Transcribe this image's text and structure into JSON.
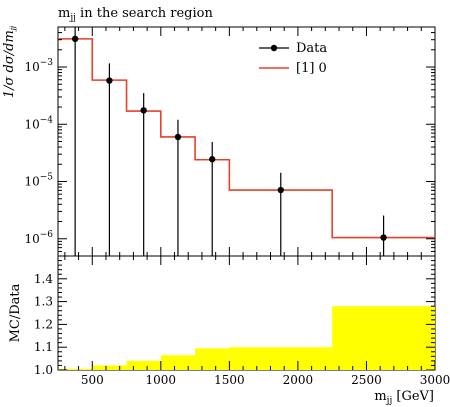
{
  "chart_data": [
    {
      "type": "line",
      "title": "m_jj in the search region",
      "ylabel": "1/σ dσ/dm_jj",
      "yscale": "log",
      "xlim": [
        250,
        3000
      ],
      "ylim": [
        5e-07,
        0.005
      ],
      "x_ticks": [
        500,
        1000,
        1500,
        2000,
        2500,
        3000
      ],
      "y_ticks": [
        {
          "value": 0.001,
          "mantissa": "10",
          "exp": "−3"
        },
        {
          "value": 0.0001,
          "mantissa": "10",
          "exp": "−4"
        },
        {
          "value": 1e-05,
          "mantissa": "10",
          "exp": "−5"
        },
        {
          "value": 1e-06,
          "mantissa": "10",
          "exp": "−6"
        }
      ],
      "legend": {
        "position": "top-right",
        "entries": [
          {
            "label": "Data",
            "style": "marker"
          },
          {
            "label": "[1] 0",
            "style": "line"
          }
        ]
      },
      "series": [
        {
          "name": "Data",
          "style": "points",
          "x": [
            375,
            625,
            875,
            1125,
            1375,
            1875,
            2625
          ],
          "y": [
            0.0031,
            0.00058,
            0.000175,
            6e-05,
            2.45e-05,
            7.1e-06,
            1.05e-06
          ],
          "yerr_low": [
            0.0031,
            0.00058,
            0.000175,
            6e-05,
            2.45e-05,
            7.1e-06,
            7.5e-07
          ],
          "yerr_high": [
            0.0031,
            0.00058,
            0.000175,
            6e-05,
            2.45e-05,
            7.1e-06,
            1.5e-06
          ]
        },
        {
          "name": "[1] 0",
          "style": "step",
          "color": "#e8412a",
          "bin_edges": [
            250,
            500,
            750,
            1000,
            1250,
            1500,
            2250,
            3000
          ],
          "values": [
            0.0031,
            0.00059,
            0.00017,
            6e-05,
            2.4e-05,
            7.1e-06,
            1.05e-06
          ]
        }
      ]
    },
    {
      "type": "bar",
      "ylabel": "MC/Data",
      "xlabel": "m_jj [GeV]",
      "xlim": [
        250,
        3000
      ],
      "ylim": [
        1.0,
        1.5
      ],
      "y_ticks": [
        "1.0",
        "1.1",
        "1.2",
        "1.3",
        "1.4"
      ],
      "x_ticks": [
        "500",
        "1000",
        "1500",
        "2000",
        "2500",
        "3000"
      ],
      "band_color": "#ffff00",
      "bin_edges": [
        250,
        500,
        750,
        1000,
        1250,
        1500,
        2250,
        3000
      ],
      "values": [
        1.005,
        1.02,
        1.04,
        1.065,
        1.095,
        1.1,
        1.28
      ]
    }
  ]
}
